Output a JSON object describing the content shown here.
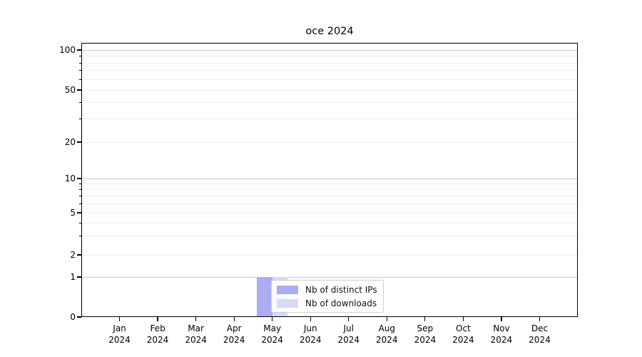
{
  "chart_data": {
    "type": "bar",
    "title": "oce 2024",
    "categories": [
      "Jan 2024",
      "Feb 2024",
      "Mar 2024",
      "Apr 2024",
      "May 2024",
      "Jun 2024",
      "Jul 2024",
      "Aug 2024",
      "Sep 2024",
      "Oct 2024",
      "Nov 2024",
      "Dec 2024"
    ],
    "series": [
      {
        "name": "Nb of distinct IPs",
        "color": "#acacf2",
        "values": [
          0,
          0,
          0,
          0,
          1,
          0,
          0,
          0,
          0,
          0,
          0,
          0
        ]
      },
      {
        "name": "Nb of downloads",
        "color": "#d9d9f2",
        "values": [
          0,
          0,
          0,
          0,
          1,
          0,
          0,
          0,
          0,
          0,
          0,
          0
        ]
      }
    ],
    "xlabel": "",
    "ylabel": "",
    "yscale": "log above 1, linear 0-1 (symlog-like)",
    "ylim": [
      0,
      120
    ],
    "ytick_values": [
      0,
      1,
      2,
      5,
      10,
      20,
      50,
      100
    ],
    "ytick_labels": [
      "0",
      "1",
      "2",
      "5",
      "10",
      "20",
      "50",
      "100"
    ],
    "grid": "horizontal major and minor, no vertical",
    "legend_position": "inside plot, lower area left of center",
    "colors": {
      "major_gridline": "#c8c8c8",
      "minor_gridline": "#efefef",
      "axis": "#000000",
      "background": "#ffffff"
    }
  }
}
